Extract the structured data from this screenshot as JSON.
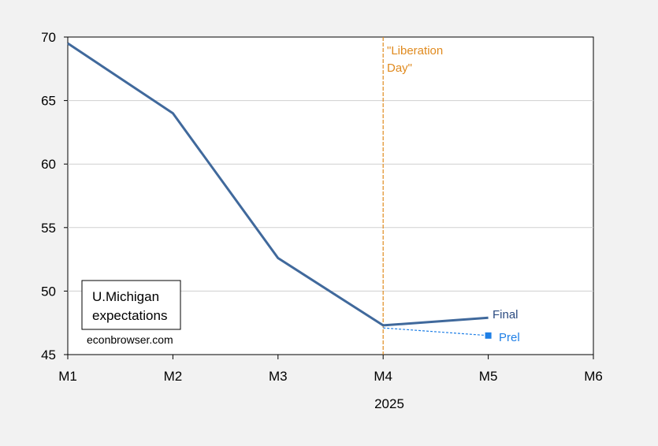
{
  "chart_data": {
    "type": "line",
    "title": "",
    "xlabel": "2025",
    "ylabel": "",
    "categories": [
      "M1",
      "M2",
      "M3",
      "M4",
      "M5",
      "M6"
    ],
    "xlim": [
      0,
      5
    ],
    "ylim": [
      45,
      70
    ],
    "yticks": [
      45,
      50,
      55,
      60,
      65,
      70
    ],
    "grid": true,
    "series": [
      {
        "name": "Final",
        "color": "#40699c",
        "style": "solid",
        "points": [
          [
            0,
            69.5
          ],
          [
            1,
            64.0
          ],
          [
            2,
            52.6
          ],
          [
            3,
            47.3
          ],
          [
            4,
            47.9
          ]
        ]
      },
      {
        "name": "Prel",
        "color": "#1f7fe6",
        "style": "dashed",
        "marker": "square",
        "points": [
          [
            3,
            47.1
          ],
          [
            4,
            46.5
          ]
        ]
      }
    ],
    "annotations": {
      "event_line": {
        "x": 3,
        "label_lines": [
          "\"Liberation",
          "Day\""
        ],
        "color": "#e08a1e"
      },
      "legend_box_lines": [
        "U.Michigan",
        "expectations"
      ],
      "source": "econbrowser.com"
    }
  }
}
